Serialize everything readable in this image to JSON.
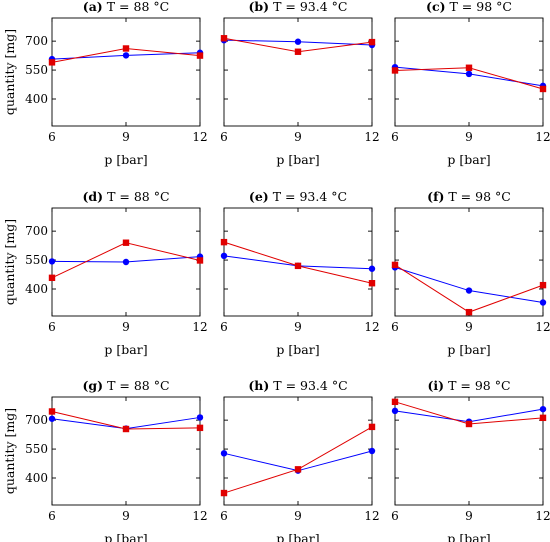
{
  "colors": {
    "blue": "#0000ff",
    "red": "#e00000",
    "axis": "#000000"
  },
  "chart_data": [
    {
      "id": "a",
      "type": "line",
      "letter": "(a)",
      "title": "T = 88 °C",
      "xlabel": "p [bar]",
      "ylabel": "quantity [mg]",
      "x": [
        6,
        9,
        12
      ],
      "xticks": [
        "6",
        "9",
        "12"
      ],
      "yticks": [
        "400",
        "550",
        "700"
      ],
      "series": [
        {
          "color": "blue",
          "marker": "circle",
          "values": [
            607,
            626,
            640
          ]
        },
        {
          "color": "red",
          "marker": "square",
          "values": [
            590,
            662,
            625
          ]
        }
      ]
    },
    {
      "id": "b",
      "type": "line",
      "letter": "(b)",
      "title": "T = 93.4 °C",
      "xlabel": "p [bar]",
      "ylabel": "",
      "x": [
        6,
        9,
        12
      ],
      "xticks": [
        "6",
        "9",
        "12"
      ],
      "yticks": [],
      "series": [
        {
          "color": "blue",
          "marker": "circle",
          "values": [
            705,
            697,
            680
          ]
        },
        {
          "color": "red",
          "marker": "square",
          "values": [
            715,
            645,
            695
          ]
        }
      ]
    },
    {
      "id": "c",
      "type": "line",
      "letter": "(c)",
      "title": "T = 98 °C",
      "xlabel": "p [bar]",
      "ylabel": "",
      "x": [
        6,
        9,
        12
      ],
      "xticks": [
        "6",
        "9",
        "12"
      ],
      "yticks": [],
      "series": [
        {
          "color": "blue",
          "marker": "circle",
          "values": [
            565,
            530,
            468
          ]
        },
        {
          "color": "red",
          "marker": "square",
          "values": [
            548,
            562,
            452
          ]
        }
      ]
    },
    {
      "id": "d",
      "type": "line",
      "letter": "(d)",
      "title": "T = 88 °C",
      "xlabel": "p [bar]",
      "ylabel": "quantity [mg]",
      "x": [
        6,
        9,
        12
      ],
      "xticks": [
        "6",
        "9",
        "12"
      ],
      "yticks": [
        "400",
        "550",
        "700"
      ],
      "series": [
        {
          "color": "blue",
          "marker": "circle",
          "values": [
            543,
            540,
            568
          ]
        },
        {
          "color": "red",
          "marker": "square",
          "values": [
            458,
            640,
            548
          ]
        }
      ]
    },
    {
      "id": "e",
      "type": "line",
      "letter": "(e)",
      "title": "T = 93.4 °C",
      "xlabel": "p [bar]",
      "ylabel": "",
      "x": [
        6,
        9,
        12
      ],
      "xticks": [
        "6",
        "9",
        "12"
      ],
      "yticks": [],
      "series": [
        {
          "color": "blue",
          "marker": "circle",
          "values": [
            572,
            520,
            505
          ]
        },
        {
          "color": "red",
          "marker": "square",
          "values": [
            643,
            520,
            430
          ]
        }
      ]
    },
    {
      "id": "f",
      "type": "line",
      "letter": "(f)",
      "title": "T = 98 °C",
      "xlabel": "p [bar]",
      "ylabel": "",
      "x": [
        6,
        9,
        12
      ],
      "xticks": [
        "6",
        "9",
        "12"
      ],
      "yticks": [],
      "series": [
        {
          "color": "blue",
          "marker": "circle",
          "values": [
            512,
            392,
            330
          ]
        },
        {
          "color": "red",
          "marker": "square",
          "values": [
            525,
            280,
            420
          ]
        }
      ]
    },
    {
      "id": "g",
      "type": "line",
      "letter": "(g)",
      "title": "T = 88 °C",
      "xlabel": "p [bar]",
      "ylabel": "quantity [mg]",
      "x": [
        6,
        9,
        12
      ],
      "xticks": [
        "6",
        "9",
        "12"
      ],
      "yticks": [
        "400",
        "550",
        "700"
      ],
      "series": [
        {
          "color": "blue",
          "marker": "circle",
          "values": [
            707,
            656,
            714
          ]
        },
        {
          "color": "red",
          "marker": "square",
          "values": [
            745,
            654,
            660
          ]
        }
      ]
    },
    {
      "id": "h",
      "type": "line",
      "letter": "(h)",
      "title": "T = 93.4 °C",
      "xlabel": "p [bar]",
      "ylabel": "",
      "x": [
        6,
        9,
        12
      ],
      "xticks": [
        "6",
        "9",
        "12"
      ],
      "yticks": [],
      "series": [
        {
          "color": "blue",
          "marker": "circle",
          "values": [
            528,
            438,
            540
          ]
        },
        {
          "color": "red",
          "marker": "square",
          "values": [
            322,
            445,
            665
          ]
        }
      ]
    },
    {
      "id": "i",
      "type": "line",
      "letter": "(i)",
      "title": "T = 98 °C",
      "xlabel": "p [bar]",
      "ylabel": "",
      "x": [
        6,
        9,
        12
      ],
      "xticks": [
        "6",
        "9",
        "12"
      ],
      "yticks": [],
      "series": [
        {
          "color": "blue",
          "marker": "circle",
          "values": [
            748,
            692,
            757
          ]
        },
        {
          "color": "red",
          "marker": "square",
          "values": [
            795,
            680,
            712
          ]
        }
      ]
    }
  ]
}
